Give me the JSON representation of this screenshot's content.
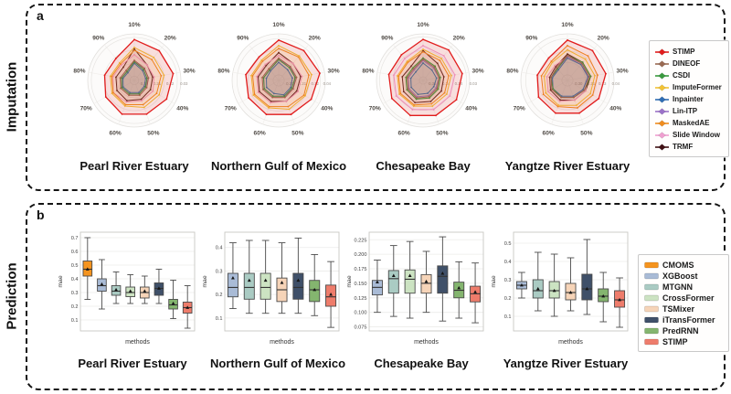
{
  "panels": {
    "a": {
      "letter": "a",
      "side_label": "Imputation"
    },
    "b": {
      "letter": "b",
      "side_label": "Prediction"
    }
  },
  "chart_data": {
    "imputation_radars": {
      "type": "radar",
      "angles": [
        "10%",
        "20%",
        "30%",
        "40%",
        "50%",
        "60%",
        "70%",
        "80%",
        "90%"
      ],
      "legend_position": "right",
      "methods": [
        {
          "name": "STIMP",
          "color": "#e11c1c"
        },
        {
          "name": "DINEOF",
          "color": "#9a6a52"
        },
        {
          "name": "CSDI",
          "color": "#3a9a3f"
        },
        {
          "name": "ImputeFormer",
          "color": "#f2c234"
        },
        {
          "name": "Inpainter",
          "color": "#2f6db4"
        },
        {
          "name": "Lin-ITP",
          "color": "#9b72c8"
        },
        {
          "name": "MaskedAE",
          "color": "#f08c1e"
        },
        {
          "name": "Slide Window",
          "color": "#ef9fd0"
        },
        {
          "name": "TRMF",
          "color": "#401014"
        }
      ],
      "charts": [
        {
          "title": "Pearl River Estuary",
          "center_value": 0.33,
          "edge_value": 0.005,
          "tick_values": [
            0.3,
            0.21,
            0.12,
            0.03
          ],
          "tick_labels": [
            "0.30",
            "0.21",
            "0.12",
            "0.03"
          ],
          "series": {
            "STIMP": [
              0.045,
              0.06,
              0.055,
              0.07,
              0.08,
              0.08,
              0.1,
              0.12,
              0.13
            ],
            "ImputeFormer": [
              0.1,
              0.12,
              0.12,
              0.13,
              0.13,
              0.14,
              0.15,
              0.16,
              0.17
            ],
            "MaskedAE": [
              0.12,
              0.14,
              0.14,
              0.15,
              0.15,
              0.15,
              0.16,
              0.17,
              0.18
            ],
            "Slide Window": [
              0.15,
              0.19,
              0.19,
              0.18,
              0.18,
              0.17,
              0.16,
              0.18,
              0.19
            ],
            "TRMF": [
              0.11,
              0.19,
              0.2,
              0.2,
              0.19,
              0.18,
              0.19,
              0.2,
              0.21
            ],
            "DINEOF": [
              0.19,
              0.22,
              0.23,
              0.23,
              0.22,
              0.22,
              0.22,
              0.23,
              0.24
            ],
            "CSDI": [
              0.2,
              0.23,
              0.24,
              0.24,
              0.23,
              0.23,
              0.23,
              0.24,
              0.25
            ],
            "Inpainter": [
              0.21,
              0.24,
              0.25,
              0.25,
              0.24,
              0.24,
              0.24,
              0.25,
              0.26
            ],
            "Lin-ITP": [
              0.2,
              0.22,
              0.23,
              0.24,
              0.23,
              0.23,
              0.23,
              0.24,
              0.25
            ]
          }
        },
        {
          "title": "Northern Gulf of Mexico",
          "center_value": 0.34,
          "edge_value": 0.005,
          "tick_values": [
            0.3,
            0.21,
            0.12,
            0.04
          ],
          "tick_labels": [
            "0.30",
            "0.21",
            "0.12",
            "0.04"
          ],
          "series": {
            "STIMP": [
              0.05,
              0.06,
              0.04,
              0.07,
              0.08,
              0.08,
              0.09,
              0.1,
              0.12
            ],
            "ImputeFormer": [
              0.09,
              0.11,
              0.1,
              0.12,
              0.12,
              0.13,
              0.13,
              0.14,
              0.15
            ],
            "MaskedAE": [
              0.11,
              0.12,
              0.12,
              0.13,
              0.14,
              0.14,
              0.14,
              0.15,
              0.16
            ],
            "Slide Window": [
              0.16,
              0.18,
              0.17,
              0.18,
              0.18,
              0.17,
              0.17,
              0.18,
              0.19
            ],
            "TRMF": [
              0.14,
              0.18,
              0.18,
              0.19,
              0.18,
              0.18,
              0.18,
              0.19,
              0.2
            ],
            "DINEOF": [
              0.18,
              0.21,
              0.21,
              0.22,
              0.21,
              0.21,
              0.21,
              0.22,
              0.23
            ],
            "CSDI": [
              0.19,
              0.22,
              0.22,
              0.23,
              0.22,
              0.22,
              0.22,
              0.23,
              0.24
            ],
            "Inpainter": [
              0.21,
              0.24,
              0.24,
              0.24,
              0.23,
              0.24,
              0.24,
              0.25,
              0.25
            ],
            "Lin-ITP": [
              0.19,
              0.21,
              0.22,
              0.22,
              0.22,
              0.22,
              0.22,
              0.23,
              0.24
            ]
          }
        },
        {
          "title": "Chesapeake Bay",
          "center_value": 0.38,
          "edge_value": 0.005,
          "tick_values": [
            0.35,
            0.24,
            0.14,
            0.03
          ],
          "tick_labels": [
            "0.35",
            "0.24",
            "0.14",
            "0.03"
          ],
          "series": {
            "STIMP": [
              0.05,
              0.06,
              0.06,
              0.07,
              0.08,
              0.08,
              0.09,
              0.1,
              0.11
            ],
            "Slide Window": [
              0.1,
              0.12,
              0.12,
              0.13,
              0.13,
              0.13,
              0.13,
              0.14,
              0.15
            ],
            "ImputeFormer": [
              0.13,
              0.15,
              0.15,
              0.16,
              0.16,
              0.16,
              0.16,
              0.17,
              0.18
            ],
            "MaskedAE": [
              0.15,
              0.17,
              0.17,
              0.18,
              0.18,
              0.17,
              0.17,
              0.18,
              0.19
            ],
            "TRMF": [
              0.14,
              0.2,
              0.21,
              0.21,
              0.2,
              0.19,
              0.2,
              0.21,
              0.23
            ],
            "CSDI": [
              0.2,
              0.23,
              0.24,
              0.24,
              0.23,
              0.22,
              0.23,
              0.24,
              0.25
            ],
            "DINEOF": [
              0.21,
              0.24,
              0.25,
              0.25,
              0.24,
              0.23,
              0.24,
              0.25,
              0.26
            ],
            "Lin-ITP": [
              0.22,
              0.25,
              0.25,
              0.26,
              0.25,
              0.24,
              0.25,
              0.26,
              0.27
            ],
            "Inpainter": [
              0.24,
              0.27,
              0.27,
              0.28,
              0.27,
              0.26,
              0.27,
              0.28,
              0.29
            ]
          }
        },
        {
          "title": "Yangtze River Estuary",
          "center_value": 0.34,
          "edge_value": 0.005,
          "tick_values": [
            0.3,
            0.21,
            0.13,
            0.04
          ],
          "tick_labels": [
            "0.30",
            "0.21",
            "0.13",
            "0.04"
          ],
          "series": {
            "STIMP": [
              0.05,
              0.06,
              0.06,
              0.08,
              0.09,
              0.09,
              0.1,
              0.12,
              0.13
            ],
            "MaskedAE": [
              0.09,
              0.11,
              0.12,
              0.13,
              0.13,
              0.14,
              0.14,
              0.15,
              0.16
            ],
            "ImputeFormer": [
              0.12,
              0.14,
              0.14,
              0.15,
              0.15,
              0.15,
              0.16,
              0.17,
              0.17
            ],
            "Slide Window": [
              0.17,
              0.19,
              0.19,
              0.19,
              0.19,
              0.18,
              0.18,
              0.19,
              0.2
            ],
            "TRMF": [
              0.15,
              0.17,
              0.17,
              0.19,
              0.19,
              0.19,
              0.2,
              0.21,
              0.21
            ],
            "DINEOF": [
              0.16,
              0.18,
              0.18,
              0.2,
              0.21,
              0.21,
              0.21,
              0.22,
              0.22
            ],
            "CSDI": [
              0.16,
              0.17,
              0.17,
              0.2,
              0.21,
              0.21,
              0.22,
              0.22,
              0.23
            ],
            "Inpainter": [
              0.18,
              0.19,
              0.19,
              0.21,
              0.22,
              0.22,
              0.22,
              0.23,
              0.24
            ],
            "Lin-ITP": [
              0.17,
              0.18,
              0.19,
              0.21,
              0.21,
              0.21,
              0.22,
              0.23,
              0.23
            ]
          }
        }
      ]
    },
    "prediction_boxplots": {
      "type": "box",
      "xlabel": "methods",
      "ylabel": "mae",
      "legend_position": "right",
      "methods": [
        {
          "name": "CMOMS",
          "color": "#f5941e"
        },
        {
          "name": "XGBoost",
          "color": "#a9bbd6"
        },
        {
          "name": "MTGNN",
          "color": "#aacbc3"
        },
        {
          "name": "CrossFormer",
          "color": "#cce3c2"
        },
        {
          "name": "TSMixer",
          "color": "#f6d4b8"
        },
        {
          "name": "iTransFormer",
          "color": "#3f5069"
        },
        {
          "name": "PredRNN",
          "color": "#84b56f"
        },
        {
          "name": "STIMP",
          "color": "#ee7c6b"
        }
      ],
      "charts": [
        {
          "title": "Pearl River Estuary",
          "ylim": [
            0.02,
            0.74
          ],
          "yticks": [
            0.1,
            0.2,
            0.3,
            0.4,
            0.5,
            0.6,
            0.7
          ],
          "ytick_labels": [
            "0.1",
            "0.2",
            "0.3",
            "0.4",
            "0.5",
            "0.6",
            "0.7"
          ],
          "boxes": [
            {
              "method": "CMOMS",
              "whislo": 0.25,
              "q1": 0.42,
              "med": 0.47,
              "q3": 0.53,
              "whishi": 0.7,
              "mean": 0.47
            },
            {
              "method": "XGBoost",
              "whislo": 0.18,
              "q1": 0.31,
              "med": 0.35,
              "q3": 0.4,
              "whishi": 0.54,
              "mean": 0.36
            },
            {
              "method": "MTGNN",
              "whislo": 0.22,
              "q1": 0.28,
              "med": 0.31,
              "q3": 0.35,
              "whishi": 0.45,
              "mean": 0.32
            },
            {
              "method": "CrossFormer",
              "whislo": 0.22,
              "q1": 0.27,
              "med": 0.3,
              "q3": 0.34,
              "whishi": 0.43,
              "mean": 0.31
            },
            {
              "method": "TSMixer",
              "whislo": 0.22,
              "q1": 0.26,
              "med": 0.3,
              "q3": 0.34,
              "whishi": 0.42,
              "mean": 0.31
            },
            {
              "method": "iTransFormer",
              "whislo": 0.22,
              "q1": 0.28,
              "med": 0.33,
              "q3": 0.37,
              "whishi": 0.47,
              "mean": 0.33
            },
            {
              "method": "PredRNN",
              "whislo": 0.11,
              "q1": 0.18,
              "med": 0.21,
              "q3": 0.25,
              "whishi": 0.39,
              "mean": 0.22
            },
            {
              "method": "STIMP",
              "whislo": 0.04,
              "q1": 0.15,
              "med": 0.19,
              "q3": 0.23,
              "whishi": 0.35,
              "mean": 0.19
            }
          ]
        },
        {
          "title": "Northern Gulf of Mexico",
          "ylim": [
            0.045,
            0.465
          ],
          "yticks": [
            0.1,
            0.2,
            0.3,
            0.4
          ],
          "ytick_labels": [
            "0.1",
            "0.2",
            "0.3",
            "0.4"
          ],
          "boxes": [
            {
              "method": "XGBoost",
              "whislo": 0.14,
              "q1": 0.19,
              "med": 0.23,
              "q3": 0.29,
              "whishi": 0.42,
              "mean": 0.27
            },
            {
              "method": "MTGNN",
              "whislo": 0.12,
              "q1": 0.18,
              "med": 0.23,
              "q3": 0.29,
              "whishi": 0.43,
              "mean": 0.26
            },
            {
              "method": "CrossFormer",
              "whislo": 0.12,
              "q1": 0.18,
              "med": 0.23,
              "q3": 0.29,
              "whishi": 0.43,
              "mean": 0.26
            },
            {
              "method": "TSMixer",
              "whislo": 0.12,
              "q1": 0.17,
              "med": 0.22,
              "q3": 0.27,
              "whishi": 0.42,
              "mean": 0.25
            },
            {
              "method": "iTransFormer",
              "whislo": 0.12,
              "q1": 0.18,
              "med": 0.23,
              "q3": 0.29,
              "whishi": 0.44,
              "mean": 0.26
            },
            {
              "method": "PredRNN",
              "whislo": 0.11,
              "q1": 0.17,
              "med": 0.22,
              "q3": 0.26,
              "whishi": 0.37,
              "mean": 0.22
            },
            {
              "method": "STIMP",
              "whislo": 0.06,
              "q1": 0.15,
              "med": 0.19,
              "q3": 0.24,
              "whishi": 0.34,
              "mean": 0.2
            }
          ]
        },
        {
          "title": "Chesapeake Bay",
          "ylim": [
            0.068,
            0.238
          ],
          "yticks": [
            0.075,
            0.1,
            0.125,
            0.15,
            0.175,
            0.2,
            0.225
          ],
          "ytick_labels": [
            "0.075",
            "0.100",
            "0.125",
            "0.150",
            "0.175",
            "0.200",
            "0.225"
          ],
          "boxes": [
            {
              "method": "XGBoost",
              "whislo": 0.1,
              "q1": 0.13,
              "med": 0.143,
              "q3": 0.155,
              "whishi": 0.19,
              "mean": 0.152
            },
            {
              "method": "MTGNN",
              "whislo": 0.093,
              "q1": 0.133,
              "med": 0.158,
              "q3": 0.172,
              "whishi": 0.215,
              "mean": 0.163
            },
            {
              "method": "CrossFormer",
              "whislo": 0.09,
              "q1": 0.133,
              "med": 0.157,
              "q3": 0.173,
              "whishi": 0.222,
              "mean": 0.163
            },
            {
              "method": "TSMixer",
              "whislo": 0.1,
              "q1": 0.133,
              "med": 0.15,
              "q3": 0.165,
              "whishi": 0.205,
              "mean": 0.153
            },
            {
              "method": "iTransFormer",
              "whislo": 0.085,
              "q1": 0.133,
              "med": 0.162,
              "q3": 0.18,
              "whishi": 0.23,
              "mean": 0.167
            },
            {
              "method": "PredRNN",
              "whislo": 0.09,
              "q1": 0.125,
              "med": 0.138,
              "q3": 0.152,
              "whishi": 0.187,
              "mean": 0.142
            },
            {
              "method": "STIMP",
              "whislo": 0.082,
              "q1": 0.118,
              "med": 0.132,
              "q3": 0.145,
              "whishi": 0.185,
              "mean": 0.135
            }
          ]
        },
        {
          "title": "Yangtze River Estuary",
          "ylim": [
            0.02,
            0.56
          ],
          "yticks": [
            0.1,
            0.2,
            0.3,
            0.4,
            0.5
          ],
          "ytick_labels": [
            "0.1",
            "0.2",
            "0.3",
            "0.4",
            "0.5"
          ],
          "boxes": [
            {
              "method": "XGBoost",
              "whislo": 0.2,
              "q1": 0.25,
              "med": 0.27,
              "q3": 0.29,
              "whishi": 0.34,
              "mean": 0.27
            },
            {
              "method": "MTGNN",
              "whislo": 0.13,
              "q1": 0.2,
              "med": 0.24,
              "q3": 0.3,
              "whishi": 0.45,
              "mean": 0.25
            },
            {
              "method": "CrossFormer",
              "whislo": 0.1,
              "q1": 0.2,
              "med": 0.24,
              "q3": 0.29,
              "whishi": 0.44,
              "mean": 0.24
            },
            {
              "method": "TSMixer",
              "whislo": 0.13,
              "q1": 0.19,
              "med": 0.23,
              "q3": 0.28,
              "whishi": 0.42,
              "mean": 0.23
            },
            {
              "method": "iTransFormer",
              "whislo": 0.11,
              "q1": 0.19,
              "med": 0.25,
              "q3": 0.33,
              "whishi": 0.52,
              "mean": 0.25
            },
            {
              "method": "PredRNN",
              "whislo": 0.07,
              "q1": 0.18,
              "med": 0.21,
              "q3": 0.25,
              "whishi": 0.34,
              "mean": 0.21
            },
            {
              "method": "STIMP",
              "whislo": 0.04,
              "q1": 0.15,
              "med": 0.19,
              "q3": 0.24,
              "whishi": 0.31,
              "mean": 0.19
            }
          ]
        }
      ]
    }
  }
}
